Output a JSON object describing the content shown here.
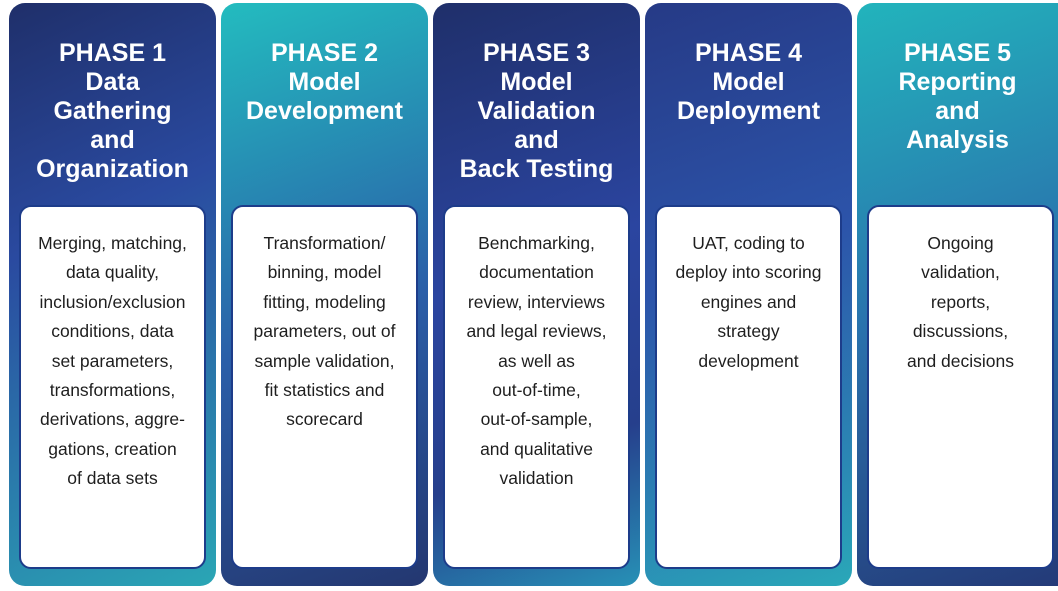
{
  "phases": [
    {
      "title": [
        "PHASE 1",
        "Data",
        "Gathering",
        "and",
        "Organization"
      ],
      "body": [
        "Merging, matching,",
        "data quality,",
        "inclusion/exclusion",
        "conditions, data",
        "set parameters,",
        "transformations,",
        "derivations, aggre-",
        "gations, creation",
        "of data sets"
      ]
    },
    {
      "title": [
        "PHASE 2",
        "Model",
        "Development"
      ],
      "body": [
        "Transformation/",
        "binning, model",
        "fitting, modeling",
        "parameters, out of",
        "sample validation,",
        "fit statistics and",
        "scorecard"
      ]
    },
    {
      "title": [
        "PHASE 3",
        "Model",
        "Validation",
        "and",
        "Back Testing"
      ],
      "body": [
        "Benchmarking,",
        "documentation",
        "review, interviews",
        "and legal reviews,",
        "as well as",
        "out-of-time,",
        "out-of-sample,",
        "and qualitative",
        "validation"
      ]
    },
    {
      "title": [
        "PHASE 4",
        "Model",
        "Deployment"
      ],
      "body": [
        "UAT, coding to",
        "deploy into scoring",
        "engines and",
        "strategy",
        "development"
      ]
    },
    {
      "title": [
        "PHASE 5",
        "Reporting",
        "and",
        "Analysis"
      ],
      "body": [
        "Ongoing",
        "validation,",
        "reports,",
        "discussions,",
        "and decisions"
      ]
    }
  ]
}
